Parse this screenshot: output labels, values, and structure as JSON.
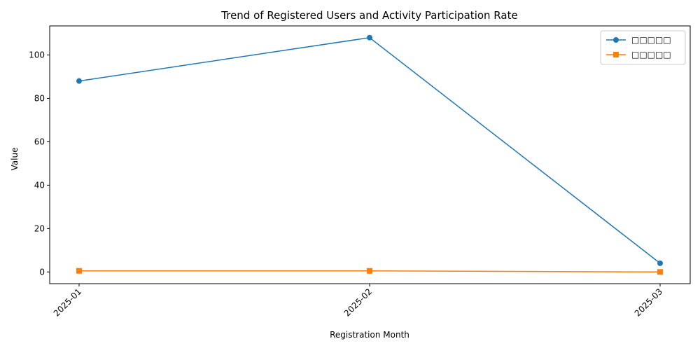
{
  "chart_data": {
    "type": "line",
    "title": "Trend of Registered Users and Activity Participation Rate",
    "xlabel": "Registration Month",
    "ylabel": "Value",
    "categories": [
      "2025-01",
      "2025-02",
      "2025-03"
    ],
    "ylim": [
      -5.4,
      113.4
    ],
    "yticks": [
      0,
      20,
      40,
      60,
      80,
      100
    ],
    "grid": false,
    "legend_position": "top-right",
    "series": [
      {
        "name": "□□□□□",
        "values": [
          88,
          108,
          4
        ],
        "color": "#1f77b4",
        "marker": "circle"
      },
      {
        "name": "□□□□□",
        "values": [
          0.5,
          0.5,
          0.0
        ],
        "color": "#ff7f0e",
        "marker": "square"
      }
    ]
  }
}
